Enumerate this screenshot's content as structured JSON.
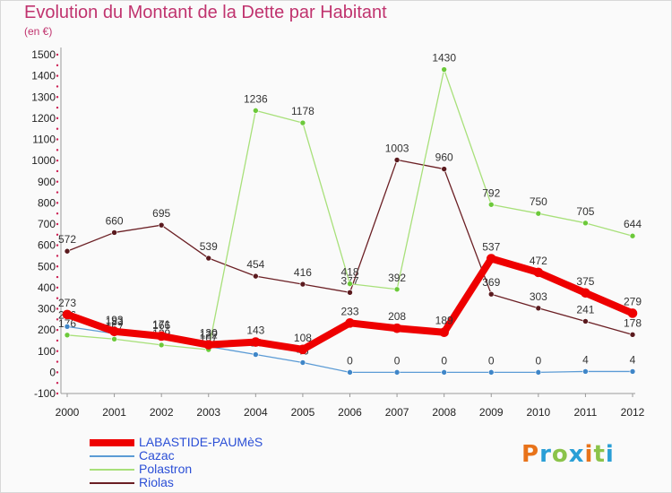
{
  "title": "Evolution du Montant de la Dette par Habitant",
  "unit": "(en €)",
  "logo": "Proxiti",
  "chart_data": {
    "type": "line",
    "x": [
      "2000",
      "2001",
      "2002",
      "2003",
      "2004",
      "2005",
      "2006",
      "2007",
      "2008",
      "2009",
      "2010",
      "2011",
      "2012"
    ],
    "ylim": [
      -100,
      1500
    ],
    "yticks": [
      -100,
      0,
      100,
      200,
      300,
      400,
      500,
      600,
      700,
      800,
      900,
      1000,
      1100,
      1200,
      1300,
      1400,
      1500
    ],
    "grid": false,
    "legend_position": "bottom-left",
    "series": [
      {
        "name": "Riolas",
        "color": "#6b1f24",
        "marker": "#5a1a1e",
        "width": 1.3,
        "values": [
          572,
          660,
          695,
          539,
          454,
          416,
          377,
          1003,
          960,
          369,
          303,
          241,
          178
        ],
        "labels": [
          "572",
          "660",
          "695",
          "539",
          "454",
          "416",
          "377",
          "1003",
          "960",
          "369",
          "303",
          "241",
          "178"
        ]
      },
      {
        "name": "Polastron",
        "color": "#a8e07a",
        "marker": "#6cc93a",
        "width": 1.3,
        "values": [
          176,
          157,
          129,
          107,
          1236,
          1178,
          418,
          392,
          1430,
          792,
          750,
          705,
          644
        ],
        "labels": [
          "176",
          "157",
          "129",
          "107",
          "1236",
          "1178",
          "418",
          "392",
          "1430",
          "792",
          "750",
          "705",
          "644"
        ]
      },
      {
        "name": "Cazac",
        "color": "#5b9bd5",
        "marker": "#3f86c8",
        "width": 1.3,
        "values": [
          216,
          183,
          166,
          122,
          84,
          46,
          0,
          0,
          0,
          0,
          0,
          4,
          4
        ],
        "labels": [
          "216",
          "183",
          "166",
          "122",
          "84",
          "46",
          "0",
          "0",
          "0",
          "0",
          "0",
          "4",
          "4"
        ]
      },
      {
        "name": "LABASTIDE-PAUMèS",
        "color": "#ee0000",
        "marker": "#ee0000",
        "width": 8,
        "values": [
          273,
          193,
          171,
          130,
          143,
          108,
          233,
          208,
          189,
          537,
          472,
          375,
          279
        ],
        "labels": [
          "273",
          "193",
          "171",
          "130",
          "143",
          "108",
          "233",
          "208",
          "189",
          "537",
          "472",
          "375",
          "279"
        ]
      }
    ],
    "legend_order": [
      "LABASTIDE-PAUMèS",
      "Cazac",
      "Polastron",
      "Riolas"
    ]
  }
}
